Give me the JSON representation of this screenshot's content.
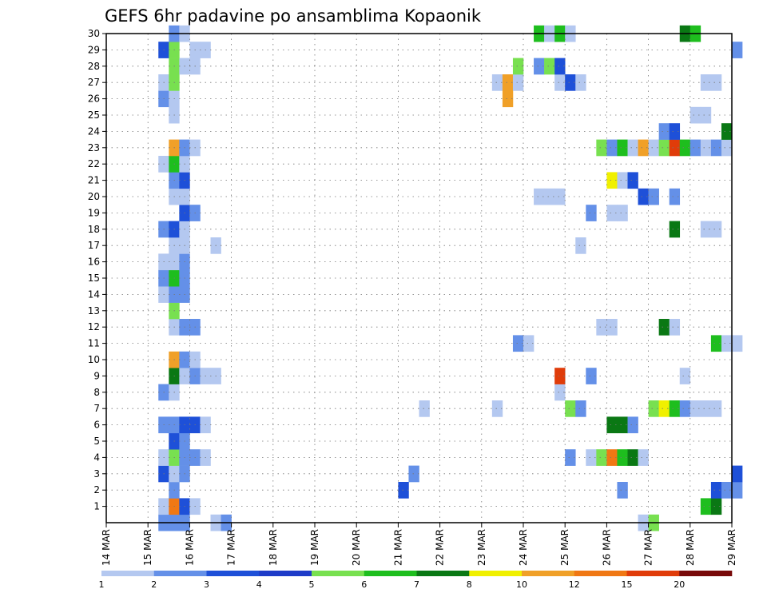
{
  "chart_data": {
    "type": "heatmap",
    "title": "GEFS 6hr padavine po ansamblima Kopaonik",
    "y_ticks": [
      "1",
      "2",
      "3",
      "4",
      "5",
      "6",
      "7",
      "8",
      "9",
      "10",
      "11",
      "12",
      "13",
      "14",
      "15",
      "16",
      "17",
      "18",
      "19",
      "20",
      "21",
      "22",
      "23",
      "24",
      "25",
      "26",
      "27",
      "28",
      "29",
      "30"
    ],
    "x_ticks": [
      "14 MAR",
      "15 MAR",
      "16 MAR",
      "17 MAR",
      "18 MAR",
      "19 MAR",
      "20 MAR",
      "21 MAR",
      "22 MAR",
      "23 MAR",
      "24 MAR",
      "25 MAR",
      "26 MAR",
      "27 MAR",
      "28 MAR",
      "29 MAR"
    ],
    "y_range": [
      0,
      30
    ],
    "x_range_days": [
      14,
      29
    ],
    "time_step": "6hr",
    "grid": "dotted",
    "colorbar": {
      "ticks": [
        "1",
        "2",
        "3",
        "4",
        "5",
        "6",
        "7",
        "8",
        "10",
        "12",
        "15",
        "20"
      ],
      "colors": [
        "#b4c8f0",
        "#6490e8",
        "#1e50d8",
        "#1e3cc8",
        "#78e050",
        "#1ebe1e",
        "#0a7814",
        "#f0f000",
        "#f0a028",
        "#f07814",
        "#e03c0a",
        "#780a0a"
      ]
    },
    "cells": [
      [
        15.25,
        0,
        1
      ],
      [
        15.5,
        0,
        1
      ],
      [
        15.75,
        0,
        1
      ],
      [
        16.5,
        0,
        0
      ],
      [
        16.75,
        0,
        1
      ],
      [
        26.75,
        0,
        0
      ],
      [
        27.0,
        0,
        4
      ],
      [
        15.25,
        1,
        0
      ],
      [
        15.5,
        1,
        9
      ],
      [
        15.75,
        1,
        2
      ],
      [
        16.0,
        1,
        0
      ],
      [
        28.25,
        1,
        5
      ],
      [
        28.5,
        1,
        6
      ],
      [
        15.5,
        2,
        1
      ],
      [
        21.0,
        2,
        2
      ],
      [
        26.25,
        2,
        1
      ],
      [
        28.5,
        2,
        2
      ],
      [
        28.75,
        2,
        1
      ],
      [
        29.0,
        2,
        1
      ],
      [
        15.25,
        3,
        2
      ],
      [
        15.5,
        3,
        0
      ],
      [
        15.75,
        3,
        1
      ],
      [
        21.25,
        3,
        1
      ],
      [
        29.0,
        3,
        2
      ],
      [
        15.25,
        4,
        0
      ],
      [
        15.5,
        4,
        4
      ],
      [
        15.75,
        4,
        1
      ],
      [
        16.0,
        4,
        1
      ],
      [
        16.25,
        4,
        0
      ],
      [
        25.0,
        4,
        1
      ],
      [
        25.5,
        4,
        0
      ],
      [
        25.75,
        4,
        4
      ],
      [
        26.0,
        4,
        9
      ],
      [
        26.25,
        4,
        5
      ],
      [
        26.5,
        4,
        6
      ],
      [
        26.75,
        4,
        0
      ],
      [
        15.5,
        5,
        2
      ],
      [
        15.75,
        5,
        1
      ],
      [
        15.25,
        6,
        1
      ],
      [
        15.5,
        6,
        1
      ],
      [
        15.75,
        6,
        2
      ],
      [
        16.0,
        6,
        2
      ],
      [
        16.25,
        6,
        0
      ],
      [
        26.0,
        6,
        6
      ],
      [
        26.25,
        6,
        6
      ],
      [
        26.5,
        6,
        1
      ],
      [
        21.5,
        7,
        0
      ],
      [
        23.25,
        7,
        0
      ],
      [
        25.0,
        7,
        4
      ],
      [
        25.25,
        7,
        1
      ],
      [
        27.0,
        7,
        4
      ],
      [
        27.25,
        7,
        7
      ],
      [
        27.5,
        7,
        5
      ],
      [
        27.75,
        7,
        1
      ],
      [
        28.0,
        7,
        0
      ],
      [
        28.25,
        7,
        0
      ],
      [
        28.5,
        7,
        0
      ],
      [
        15.25,
        8,
        1
      ],
      [
        15.5,
        8,
        0
      ],
      [
        24.75,
        8,
        0
      ],
      [
        15.5,
        9,
        6
      ],
      [
        15.75,
        9,
        0
      ],
      [
        16.0,
        9,
        1
      ],
      [
        16.25,
        9,
        0
      ],
      [
        16.5,
        9,
        0
      ],
      [
        24.75,
        9,
        10
      ],
      [
        25.5,
        9,
        1
      ],
      [
        27.75,
        9,
        0
      ],
      [
        15.5,
        10,
        8
      ],
      [
        15.75,
        10,
        1
      ],
      [
        16.0,
        10,
        0
      ],
      [
        23.75,
        11,
        1
      ],
      [
        24.0,
        11,
        0
      ],
      [
        28.5,
        11,
        5
      ],
      [
        28.75,
        11,
        0
      ],
      [
        29.0,
        11,
        0
      ],
      [
        15.5,
        12,
        0
      ],
      [
        15.75,
        12,
        1
      ],
      [
        16.0,
        12,
        1
      ],
      [
        25.75,
        12,
        0
      ],
      [
        26.0,
        12,
        0
      ],
      [
        27.25,
        12,
        6
      ],
      [
        27.5,
        12,
        0
      ],
      [
        15.5,
        13,
        4
      ],
      [
        15.25,
        14,
        0
      ],
      [
        15.5,
        14,
        1
      ],
      [
        15.75,
        14,
        1
      ],
      [
        15.25,
        15,
        1
      ],
      [
        15.5,
        15,
        5
      ],
      [
        15.75,
        15,
        1
      ],
      [
        15.25,
        16,
        0
      ],
      [
        15.5,
        16,
        0
      ],
      [
        15.75,
        16,
        1
      ],
      [
        15.5,
        17,
        0
      ],
      [
        15.75,
        17,
        0
      ],
      [
        16.5,
        17,
        0
      ],
      [
        25.25,
        17,
        0
      ],
      [
        15.25,
        18,
        1
      ],
      [
        15.5,
        18,
        2
      ],
      [
        15.75,
        18,
        0
      ],
      [
        27.5,
        18,
        6
      ],
      [
        28.25,
        18,
        0
      ],
      [
        28.5,
        18,
        0
      ],
      [
        15.75,
        19,
        2
      ],
      [
        16.0,
        19,
        1
      ],
      [
        25.5,
        19,
        1
      ],
      [
        26.0,
        19,
        0
      ],
      [
        26.25,
        19,
        0
      ],
      [
        15.5,
        20,
        0
      ],
      [
        15.75,
        20,
        0
      ],
      [
        24.25,
        20,
        0
      ],
      [
        24.5,
        20,
        0
      ],
      [
        24.75,
        20,
        0
      ],
      [
        26.75,
        20,
        2
      ],
      [
        27.0,
        20,
        1
      ],
      [
        27.5,
        20,
        1
      ],
      [
        15.5,
        21,
        1
      ],
      [
        15.75,
        21,
        2
      ],
      [
        26.0,
        21,
        7
      ],
      [
        26.25,
        21,
        0
      ],
      [
        26.5,
        21,
        2
      ],
      [
        15.25,
        22,
        0
      ],
      [
        15.5,
        22,
        5
      ],
      [
        15.75,
        22,
        0
      ],
      [
        15.5,
        23,
        8
      ],
      [
        15.75,
        23,
        1
      ],
      [
        16.0,
        23,
        0
      ],
      [
        25.75,
        23,
        4
      ],
      [
        26.0,
        23,
        1
      ],
      [
        26.25,
        23,
        5
      ],
      [
        26.5,
        23,
        0
      ],
      [
        26.75,
        23,
        8
      ],
      [
        27.0,
        23,
        0
      ],
      [
        27.25,
        23,
        4
      ],
      [
        27.5,
        23,
        10
      ],
      [
        27.75,
        23,
        5
      ],
      [
        28.0,
        23,
        1
      ],
      [
        28.25,
        23,
        0
      ],
      [
        28.5,
        23,
        1
      ],
      [
        28.75,
        23,
        0
      ],
      [
        27.25,
        24,
        1
      ],
      [
        27.5,
        24,
        2
      ],
      [
        28.75,
        24,
        6
      ],
      [
        15.5,
        25,
        0
      ],
      [
        28.0,
        25,
        0
      ],
      [
        28.25,
        25,
        0
      ],
      [
        15.25,
        26,
        1
      ],
      [
        15.5,
        26,
        0
      ],
      [
        23.5,
        26,
        8
      ],
      [
        15.25,
        27,
        0
      ],
      [
        15.5,
        27,
        4
      ],
      [
        23.25,
        27,
        0
      ],
      [
        23.5,
        27,
        8
      ],
      [
        23.75,
        27,
        0
      ],
      [
        24.75,
        27,
        0
      ],
      [
        25.0,
        27,
        2
      ],
      [
        25.25,
        27,
        0
      ],
      [
        28.25,
        27,
        0
      ],
      [
        28.5,
        27,
        0
      ],
      [
        15.5,
        28,
        4
      ],
      [
        15.75,
        28,
        0
      ],
      [
        16.0,
        28,
        0
      ],
      [
        23.75,
        28,
        4
      ],
      [
        24.25,
        28,
        1
      ],
      [
        24.5,
        28,
        4
      ],
      [
        24.75,
        28,
        2
      ],
      [
        15.25,
        29,
        2
      ],
      [
        15.5,
        29,
        4
      ],
      [
        16.0,
        29,
        0
      ],
      [
        16.25,
        29,
        0
      ],
      [
        29.0,
        29,
        1
      ],
      [
        15.5,
        30,
        1
      ],
      [
        15.75,
        30,
        0
      ],
      [
        24.25,
        30,
        5
      ],
      [
        24.5,
        30,
        0
      ],
      [
        24.75,
        30,
        5
      ],
      [
        25.0,
        30,
        0
      ],
      [
        27.75,
        30,
        6
      ],
      [
        28.0,
        30,
        5
      ]
    ]
  }
}
